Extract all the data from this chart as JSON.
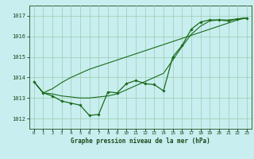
{
  "title": "Graphe pression niveau de la mer (hPa)",
  "ylim": [
    1011.5,
    1017.5
  ],
  "yticks": [
    1012,
    1013,
    1014,
    1015,
    1016,
    1017
  ],
  "xlim": [
    -0.5,
    23.5
  ],
  "bg_color": "#c8eef0",
  "grid_color": "#99ccaa",
  "line_color": "#1a6b1a",
  "spine_color": "#336633",
  "line1_x": [
    0,
    1,
    2,
    3,
    4,
    5,
    6,
    7,
    8,
    9,
    10,
    11,
    12,
    13,
    14,
    15,
    16,
    17,
    18,
    19,
    20,
    21,
    22,
    23
  ],
  "line1_y": [
    1013.8,
    1013.25,
    1013.1,
    1012.85,
    1012.75,
    1012.65,
    1012.15,
    1012.2,
    1013.3,
    1013.25,
    1013.7,
    1013.85,
    1013.7,
    1013.65,
    1013.35,
    1015.0,
    1015.55,
    1016.35,
    1016.7,
    1016.8,
    1016.8,
    1016.75,
    1016.85,
    1016.9
  ],
  "line2_x": [
    0,
    1,
    2,
    3,
    4,
    5,
    6,
    7,
    8,
    9,
    10,
    11,
    12,
    13,
    14,
    15,
    16,
    17,
    18,
    19,
    20,
    21,
    22,
    23
  ],
  "line2_y": [
    1013.8,
    1013.25,
    1013.45,
    1013.75,
    1014.0,
    1014.2,
    1014.4,
    1014.55,
    1014.7,
    1014.85,
    1015.0,
    1015.15,
    1015.3,
    1015.45,
    1015.6,
    1015.75,
    1015.9,
    1016.05,
    1016.2,
    1016.35,
    1016.5,
    1016.65,
    1016.8,
    1016.9
  ],
  "line3_x": [
    0,
    1,
    2,
    3,
    4,
    5,
    6,
    7,
    8,
    9,
    10,
    11,
    12,
    13,
    14,
    15,
    16,
    17,
    18,
    19,
    20,
    21,
    22,
    23
  ],
  "line3_y": [
    1013.8,
    1013.25,
    1013.2,
    1013.1,
    1013.05,
    1013.0,
    1013.0,
    1013.05,
    1013.1,
    1013.2,
    1013.4,
    1013.6,
    1013.8,
    1014.0,
    1014.2,
    1014.85,
    1015.5,
    1016.1,
    1016.5,
    1016.75,
    1016.8,
    1016.8,
    1016.85,
    1016.9
  ],
  "xlabel_ticks": [
    0,
    1,
    2,
    3,
    4,
    5,
    6,
    7,
    8,
    9,
    10,
    11,
    12,
    13,
    14,
    15,
    16,
    17,
    18,
    19,
    20,
    21,
    22,
    23
  ]
}
